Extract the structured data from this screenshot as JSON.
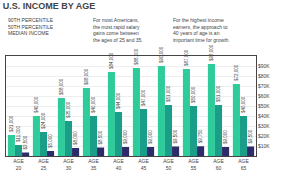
{
  "chart_data": {
    "type": "bar",
    "title": "U.S. INCOME BY AGE",
    "categories": [
      "AGE\n20",
      "AGE\n25",
      "AGE\n30",
      "AGE\n35",
      "AGE\n40",
      "AGE\n45",
      "AGE\n50",
      "AGE\n55",
      "AGE\n60",
      "AGE\n65"
    ],
    "series": [
      {
        "color": "#2ecc9a",
        "values": [
          21000,
          40000,
          58000,
          68000,
          84000,
          88000,
          90000,
          87000,
          92000,
          72000
        ],
        "value_labels": [
          "$21,000",
          "$40,000",
          "$58,000",
          "$68,000",
          "$84,000",
          "$88,000",
          "$90,000",
          "$87,000",
          "$92,000",
          "$72,000"
        ]
      },
      {
        "color": "#1a9e8a",
        "values": [
          11000,
          24000,
          35000,
          40000,
          44000,
          47000,
          51000,
          50000,
          51000,
          40000
        ],
        "value_labels": [
          "$11,000",
          "$24,000",
          "$35,000",
          "$40,000",
          "$44,000",
          "$47,000",
          "$51,000",
          "$50,000",
          "$51,000",
          "$40,000"
        ]
      },
      {
        "color": "#2d2b6b",
        "values": [
          3500,
          5000,
          8000,
          8500,
          9000,
          9000,
          9500,
          9750,
          9000,
          9500
        ],
        "value_labels": [
          "$3,500",
          "$5,000",
          "$8,000",
          "$8,500",
          "$9,000",
          "$9,000",
          "$9,500",
          "$9,750",
          "$9,000",
          "$9,500"
        ]
      }
    ],
    "ylim": [
      0,
      100000
    ],
    "yticks": [
      {
        "value": 10000,
        "label": "$10K"
      },
      {
        "value": 20000,
        "label": "$20K"
      },
      {
        "value": 30000,
        "label": "$30K"
      },
      {
        "value": 40000,
        "label": "$40K"
      },
      {
        "value": 50000,
        "label": "$50K"
      },
      {
        "value": 60000,
        "label": "$60K"
      },
      {
        "value": 70000,
        "label": "$70K"
      },
      {
        "value": 80000,
        "label": "$80K"
      },
      {
        "value": 90000,
        "label": "$90K"
      }
    ],
    "grid": true,
    "data_labels": true,
    "annotations": [
      "90TH PERCENTILE\n50TH PERCENTILE\nMEDIAN INCOME",
      "For most Americans,\nthe most rapid salary\ngains come between\nthe ages of 25 and 35.",
      "For the highest income\nearners, the approach to\n40 years of age is an\nimportant time for growth."
    ]
  }
}
